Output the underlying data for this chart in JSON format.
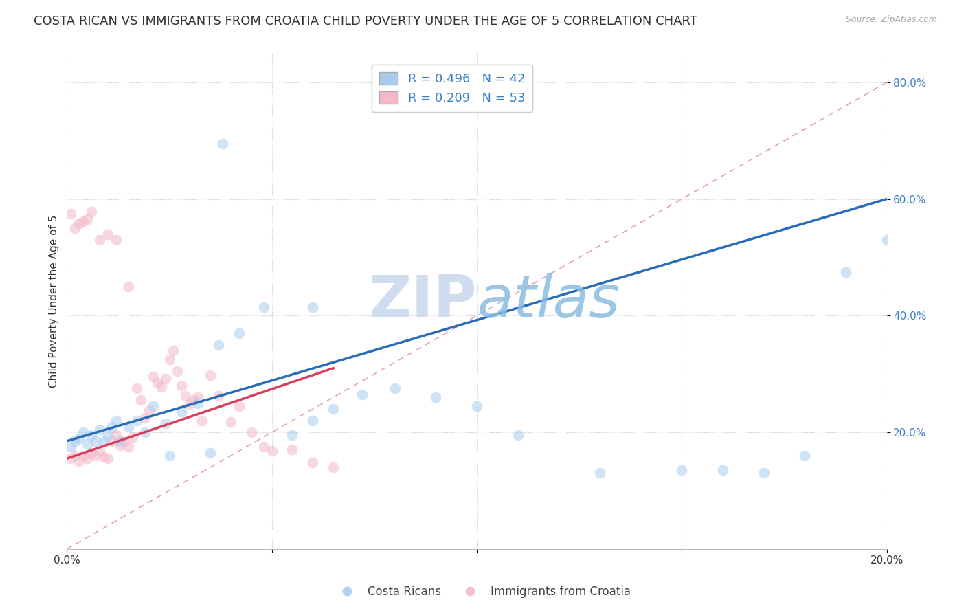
{
  "title": "COSTA RICAN VS IMMIGRANTS FROM CROATIA CHILD POVERTY UNDER THE AGE OF 5 CORRELATION CHART",
  "source": "Source: ZipAtlas.com",
  "ylabel": "Child Poverty Under the Age of 5",
  "xlim": [
    0.0,
    0.2
  ],
  "ylim": [
    0.0,
    0.85
  ],
  "xticks": [
    0.0,
    0.05,
    0.1,
    0.15,
    0.2
  ],
  "xtick_labels": [
    "0.0%",
    "",
    "",
    "",
    "20.0%"
  ],
  "yticks": [
    0.2,
    0.4,
    0.6,
    0.8
  ],
  "ytick_labels": [
    "20.0%",
    "40.0%",
    "60.0%",
    "80.0%"
  ],
  "legend_labels": [
    "R = 0.496   N = 42",
    "R = 0.209   N = 53"
  ],
  "legend_bottom_labels": [
    "Costa Ricans",
    "Immigrants from Croatia"
  ],
  "blue_color": "#A8CCF0",
  "pink_color": "#F4B8C8",
  "blue_line_color": "#2B6CB8",
  "pink_line_color": "#D94060",
  "diag_line_color": "#E0A0B0",
  "background_color": "#FFFFFF",
  "watermark_zip": "ZIP",
  "watermark_atlas": "atlas",
  "blue_scatter_x": [
    0.001,
    0.002,
    0.003,
    0.004,
    0.005,
    0.006,
    0.007,
    0.008,
    0.009,
    0.01,
    0.011,
    0.012,
    0.013,
    0.015,
    0.017,
    0.019,
    0.021,
    0.024,
    0.028,
    0.032,
    0.037,
    0.042,
    0.048,
    0.055,
    0.06,
    0.065,
    0.072,
    0.08,
    0.09,
    0.1,
    0.038,
    0.06,
    0.11,
    0.13,
    0.15,
    0.16,
    0.17,
    0.18,
    0.19,
    0.2,
    0.025,
    0.035
  ],
  "blue_scatter_y": [
    0.175,
    0.185,
    0.19,
    0.2,
    0.18,
    0.195,
    0.185,
    0.205,
    0.185,
    0.195,
    0.21,
    0.22,
    0.185,
    0.21,
    0.22,
    0.2,
    0.245,
    0.215,
    0.235,
    0.25,
    0.35,
    0.37,
    0.415,
    0.195,
    0.22,
    0.24,
    0.265,
    0.275,
    0.26,
    0.245,
    0.695,
    0.415,
    0.195,
    0.13,
    0.135,
    0.135,
    0.13,
    0.16,
    0.475,
    0.53,
    0.16,
    0.165
  ],
  "pink_scatter_x": [
    0.001,
    0.002,
    0.003,
    0.004,
    0.005,
    0.006,
    0.007,
    0.008,
    0.009,
    0.01,
    0.011,
    0.012,
    0.013,
    0.014,
    0.015,
    0.016,
    0.017,
    0.018,
    0.019,
    0.02,
    0.021,
    0.022,
    0.023,
    0.024,
    0.025,
    0.026,
    0.027,
    0.028,
    0.029,
    0.03,
    0.031,
    0.032,
    0.033,
    0.035,
    0.037,
    0.04,
    0.042,
    0.045,
    0.048,
    0.05,
    0.055,
    0.06,
    0.065,
    0.001,
    0.002,
    0.003,
    0.004,
    0.005,
    0.006,
    0.008,
    0.01,
    0.012,
    0.015
  ],
  "pink_scatter_y": [
    0.155,
    0.16,
    0.15,
    0.16,
    0.155,
    0.165,
    0.16,
    0.168,
    0.158,
    0.155,
    0.185,
    0.195,
    0.178,
    0.185,
    0.175,
    0.192,
    0.275,
    0.255,
    0.225,
    0.238,
    0.295,
    0.285,
    0.278,
    0.292,
    0.325,
    0.34,
    0.305,
    0.28,
    0.262,
    0.248,
    0.255,
    0.26,
    0.22,
    0.298,
    0.262,
    0.218,
    0.245,
    0.2,
    0.175,
    0.168,
    0.17,
    0.148,
    0.14,
    0.575,
    0.55,
    0.558,
    0.562,
    0.565,
    0.578,
    0.53,
    0.54,
    0.53,
    0.45
  ],
  "blue_line_x": [
    0.0,
    0.2
  ],
  "blue_line_y": [
    0.185,
    0.6
  ],
  "pink_line_x": [
    0.0,
    0.065
  ],
  "pink_line_y": [
    0.155,
    0.31
  ],
  "diag_line_x": [
    0.0,
    0.2
  ],
  "diag_line_y": [
    0.0,
    0.8
  ],
  "marker_size": 130,
  "marker_alpha": 0.55,
  "title_fontsize": 13,
  "axis_label_fontsize": 11,
  "tick_fontsize": 11,
  "legend_fontsize": 13
}
